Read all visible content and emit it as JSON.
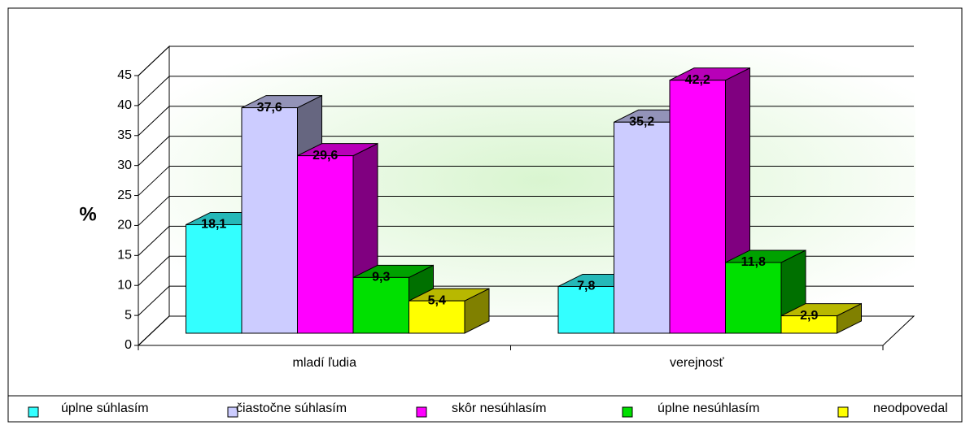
{
  "chart_data": {
    "type": "bar3d",
    "y_label": "%",
    "categories": [
      "mladí ľudia",
      "verejnosť"
    ],
    "series": [
      {
        "name": "úplne súhlasím",
        "color": "#33ffff",
        "values": [
          18.1,
          7.8
        ],
        "value_labels": [
          "18,1",
          "7,8"
        ]
      },
      {
        "name": "čiastočne súhlasím",
        "color": "#ccccff",
        "values": [
          37.6,
          35.2
        ],
        "value_labels": [
          "37,6",
          "35,2"
        ]
      },
      {
        "name": "skôr nesúhlasím",
        "color": "#ff00ff",
        "values": [
          29.6,
          42.2
        ],
        "value_labels": [
          "29,6",
          "42,2"
        ]
      },
      {
        "name": "úplne nesúhlasím",
        "color": "#00e000",
        "values": [
          9.3,
          11.8
        ],
        "value_labels": [
          "9,3",
          "11,8"
        ]
      },
      {
        "name": "neodpovedal",
        "color": "#ffff00",
        "values": [
          5.4,
          2.9
        ],
        "value_labels": [
          "5,4",
          "2,9"
        ]
      }
    ],
    "ylim": [
      0,
      45
    ],
    "yticks": [
      0,
      5,
      10,
      15,
      20,
      25,
      30,
      35,
      40,
      45
    ],
    "grid": true,
    "legend": "bottom"
  }
}
